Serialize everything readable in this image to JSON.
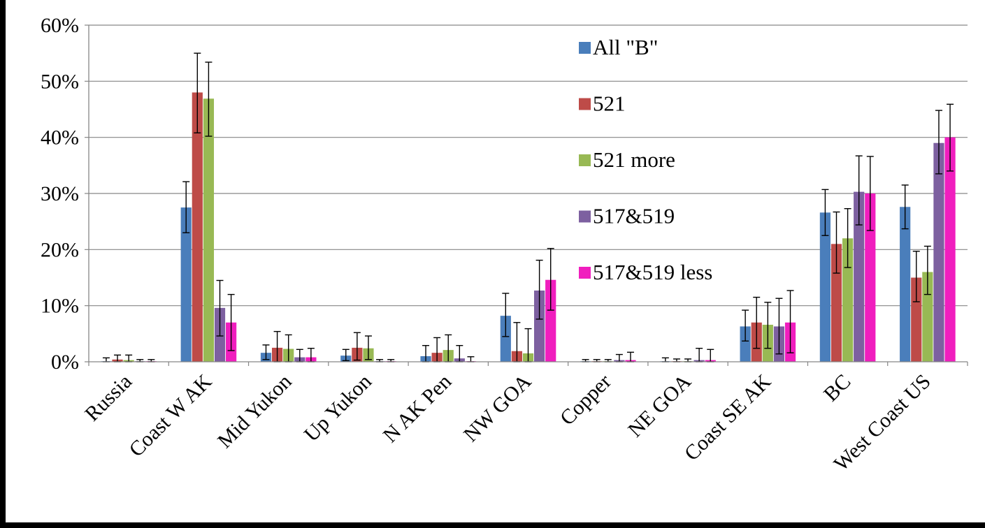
{
  "chart_data": {
    "type": "bar",
    "title": "",
    "xlabel": "",
    "ylabel": "",
    "ylim": [
      0,
      60
    ],
    "y_tick_labels": [
      "0%",
      "10%",
      "20%",
      "30%",
      "40%",
      "50%",
      "60%"
    ],
    "y_ticks": [
      0,
      10,
      20,
      30,
      40,
      50,
      60
    ],
    "grid": true,
    "legend_position": "top-right",
    "categories": [
      "Russia",
      "Coast W AK",
      "Mid Yukon",
      "Up Yukon",
      "N AK Pen",
      "NW GOA",
      "Copper",
      "NE GOA",
      "Coast SE AK",
      "BC",
      "West Coast US"
    ],
    "series": [
      {
        "name": "All \"B\"",
        "color": "#4a7ebb",
        "values": [
          0.1,
          27.5,
          1.6,
          1.1,
          1.0,
          8.2,
          0.1,
          0.1,
          6.3,
          26.6,
          27.6
        ],
        "err_low": [
          0,
          23.0,
          0.4,
          0.2,
          0,
          4.5,
          0,
          0,
          3.7,
          22.5,
          23.7
        ],
        "err_high": [
          0.7,
          32.1,
          3.0,
          2.2,
          2.9,
          12.2,
          0.4,
          0.7,
          9.2,
          30.7,
          31.5
        ]
      },
      {
        "name": "521",
        "color": "#be4b48",
        "values": [
          0.4,
          48.0,
          2.5,
          2.5,
          1.6,
          1.9,
          0.1,
          0.1,
          7.0,
          21.0,
          15.0
        ],
        "err_low": [
          0,
          40.8,
          0,
          0.3,
          0,
          0,
          0,
          0,
          2.4,
          15.8,
          10.7
        ],
        "err_high": [
          1.2,
          55.0,
          5.4,
          5.2,
          4.3,
          7.0,
          0.4,
          0.5,
          11.5,
          26.7,
          19.7
        ]
      },
      {
        "name": "521 more",
        "color": "#98b954",
        "values": [
          0.3,
          46.9,
          2.3,
          2.4,
          2.1,
          1.5,
          0.1,
          0.1,
          6.6,
          22.0,
          16.0
        ],
        "err_low": [
          0,
          40.2,
          0,
          0.4,
          0,
          0,
          0,
          0,
          2.4,
          16.8,
          12.0
        ],
        "err_high": [
          1.2,
          53.4,
          4.8,
          4.6,
          4.8,
          5.9,
          0.4,
          0.5,
          10.6,
          27.3,
          20.6
        ]
      },
      {
        "name": "517&519",
        "color": "#7d60a0",
        "values": [
          0.1,
          9.6,
          0.8,
          0.1,
          0.6,
          12.7,
          0.3,
          0.3,
          6.3,
          30.3,
          39.0
        ],
        "err_low": [
          0,
          4.6,
          0,
          0,
          0,
          7.6,
          0,
          0,
          1.4,
          24.4,
          33.5
        ],
        "err_high": [
          0.4,
          14.5,
          2.2,
          0.4,
          2.9,
          18.1,
          1.3,
          2.4,
          11.3,
          36.7,
          44.8
        ]
      },
      {
        "name": "517&519 less",
        "color": "#f01ebe",
        "values": [
          0.1,
          7.0,
          0.8,
          0.1,
          0.1,
          14.6,
          0.3,
          0.3,
          7.0,
          30.0,
          40.0
        ],
        "err_low": [
          0,
          2.0,
          0,
          0,
          0,
          9.2,
          0,
          0,
          1.6,
          23.4,
          34.0
        ],
        "err_high": [
          0.4,
          12.0,
          2.4,
          0.4,
          0.9,
          20.2,
          1.7,
          2.2,
          12.7,
          36.6,
          45.9
        ]
      }
    ]
  }
}
